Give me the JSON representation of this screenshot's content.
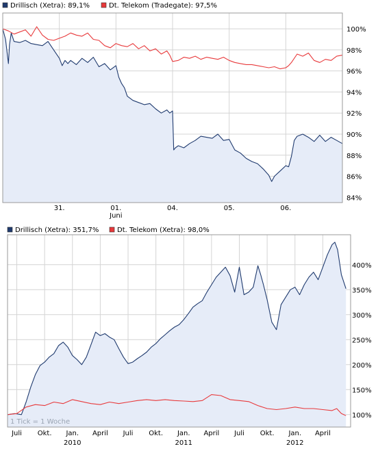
{
  "chart_data": [
    {
      "type": "line",
      "legend_position": "top-left",
      "grid": true,
      "y_axis_side": "right",
      "ylim": [
        83.5,
        101.5
      ],
      "yticks": [
        "100%",
        "98%",
        "96%",
        "94%",
        "92%",
        "90%",
        "88%",
        "86%",
        "84%"
      ],
      "ytick_values": [
        100,
        98,
        96,
        94,
        92,
        90,
        88,
        86,
        84
      ],
      "xticks": [
        "31.",
        "01.",
        "04.",
        "05.",
        "06."
      ],
      "xtick_sublabels": [
        "",
        "Juni",
        "",
        "",
        ""
      ],
      "xtick_positions": [
        1,
        2,
        3,
        4,
        5
      ],
      "xlim": [
        0,
        6
      ],
      "series": [
        {
          "name": "Drillisch (Xetra): 89,1%",
          "color": "#1f3a6e",
          "fill": "#e6ecf8",
          "x": [
            0,
            0.05,
            0.1,
            0.12,
            0.15,
            0.2,
            0.3,
            0.4,
            0.5,
            0.6,
            0.7,
            0.8,
            0.9,
            1.0,
            1.05,
            1.1,
            1.15,
            1.2,
            1.3,
            1.4,
            1.5,
            1.6,
            1.7,
            1.8,
            1.9,
            2.0,
            2.05,
            2.1,
            2.15,
            2.2,
            2.3,
            2.4,
            2.5,
            2.6,
            2.7,
            2.8,
            2.9,
            2.95,
            3.0,
            3.02,
            3.05,
            3.1,
            3.2,
            3.3,
            3.4,
            3.5,
            3.6,
            3.7,
            3.8,
            3.9,
            4.0,
            4.1,
            4.2,
            4.3,
            4.4,
            4.5,
            4.6,
            4.7,
            4.75,
            4.8,
            4.9,
            5.0,
            5.05,
            5.1,
            5.15,
            5.2,
            5.3,
            5.4,
            5.5,
            5.6,
            5.7,
            5.8,
            5.9,
            6.0
          ],
          "values": [
            100.0,
            99.0,
            96.7,
            98.5,
            99.6,
            98.8,
            98.7,
            98.9,
            98.6,
            98.5,
            98.4,
            98.8,
            98.0,
            97.2,
            96.5,
            97.0,
            96.7,
            97.0,
            96.6,
            97.2,
            96.8,
            97.3,
            96.4,
            96.7,
            96.1,
            96.5,
            95.4,
            94.8,
            94.4,
            93.6,
            93.2,
            93.0,
            92.8,
            92.9,
            92.4,
            92.0,
            92.3,
            92.0,
            92.2,
            88.5,
            88.7,
            88.9,
            88.7,
            89.1,
            89.4,
            89.8,
            89.7,
            89.6,
            90.0,
            89.4,
            89.5,
            88.5,
            88.2,
            87.7,
            87.4,
            87.2,
            86.7,
            86.1,
            85.5,
            86.0,
            86.5,
            87.0,
            86.9,
            87.9,
            89.4,
            89.8,
            90.0,
            89.7,
            89.3,
            89.9,
            89.3,
            89.7,
            89.4,
            89.1
          ]
        },
        {
          "name": "Dt. Telekom (Tradegate): 97,5%",
          "color": "#e8393b",
          "x": [
            0,
            0.1,
            0.2,
            0.3,
            0.4,
            0.5,
            0.6,
            0.7,
            0.8,
            0.9,
            1.0,
            1.1,
            1.2,
            1.3,
            1.4,
            1.5,
            1.6,
            1.7,
            1.8,
            1.9,
            2.0,
            2.1,
            2.2,
            2.3,
            2.4,
            2.5,
            2.6,
            2.7,
            2.8,
            2.9,
            2.95,
            3.0,
            3.1,
            3.2,
            3.3,
            3.4,
            3.5,
            3.6,
            3.7,
            3.8,
            3.9,
            4.0,
            4.1,
            4.2,
            4.3,
            4.4,
            4.5,
            4.6,
            4.7,
            4.8,
            4.9,
            5.0,
            5.05,
            5.1,
            5.2,
            5.3,
            5.4,
            5.5,
            5.6,
            5.7,
            5.8,
            5.9,
            6.0
          ],
          "values": [
            100.0,
            99.8,
            99.5,
            99.7,
            99.9,
            99.3,
            100.2,
            99.4,
            99.0,
            98.9,
            99.1,
            99.3,
            99.6,
            99.4,
            99.3,
            99.6,
            99.0,
            98.9,
            98.4,
            98.2,
            98.6,
            98.4,
            98.3,
            98.6,
            98.1,
            98.4,
            97.9,
            98.1,
            97.6,
            97.9,
            97.5,
            96.9,
            97.0,
            97.3,
            97.2,
            97.4,
            97.1,
            97.3,
            97.2,
            97.1,
            97.3,
            97.0,
            96.8,
            96.7,
            96.6,
            96.6,
            96.5,
            96.4,
            96.3,
            96.4,
            96.2,
            96.3,
            96.5,
            96.8,
            97.6,
            97.4,
            97.7,
            97.0,
            96.8,
            97.1,
            97.0,
            97.4,
            97.5
          ]
        }
      ]
    },
    {
      "type": "line",
      "legend_position": "top-left",
      "grid": true,
      "y_axis_side": "right",
      "ylim": [
        75,
        460
      ],
      "yticks": [
        "400%",
        "350%",
        "300%",
        "250%",
        "200%",
        "150%",
        "100%"
      ],
      "ytick_values": [
        400,
        350,
        300,
        250,
        200,
        150,
        100
      ],
      "xticks": [
        "Juli",
        "Okt.",
        "Jan.",
        "April",
        "Juli",
        "Okt.",
        "Jan.",
        "April",
        "Juli",
        "Okt.",
        "Jan.",
        "April"
      ],
      "xtick_years": [
        "",
        "",
        "2010",
        "",
        "",
        "",
        "2011",
        "",
        "",
        "",
        "2012",
        ""
      ],
      "xtick_positions": [
        1,
        4,
        7,
        10,
        13,
        16,
        19,
        22,
        25,
        28,
        31,
        34
      ],
      "xlim": [
        0,
        37
      ],
      "note": "1 Tick = 1 Woche",
      "series": [
        {
          "name": "Drillisch (Xetra): 351,7%",
          "color": "#1f3a6e",
          "fill": "#e6ecf8",
          "x": [
            0,
            0.8,
            1.5,
            2.0,
            2.5,
            3.0,
            3.5,
            4.0,
            4.5,
            5.0,
            5.5,
            6.0,
            6.5,
            7.0,
            7.5,
            8.0,
            8.5,
            9.0,
            9.5,
            10.0,
            10.5,
            11.0,
            11.5,
            12.0,
            12.5,
            13.0,
            13.5,
            14.0,
            14.5,
            15.0,
            15.5,
            16.0,
            16.5,
            17.0,
            17.5,
            18.0,
            18.5,
            19.0,
            19.5,
            20.0,
            20.5,
            21.0,
            21.5,
            22.0,
            22.5,
            23.0,
            23.5,
            24.0,
            24.5,
            25.0,
            25.5,
            26.0,
            26.5,
            27.0,
            27.3,
            27.6,
            28.0,
            28.5,
            29.0,
            29.5,
            30.0,
            30.5,
            31.0,
            31.5,
            32.0,
            32.5,
            33.0,
            33.5,
            34.0,
            34.5,
            35.0,
            35.3,
            35.6,
            36.0,
            36.5
          ],
          "values": [
            100,
            102,
            100,
            125,
            155,
            180,
            198,
            205,
            215,
            222,
            238,
            245,
            235,
            218,
            210,
            200,
            215,
            240,
            265,
            258,
            262,
            255,
            250,
            232,
            215,
            202,
            205,
            212,
            218,
            225,
            235,
            242,
            252,
            260,
            268,
            275,
            280,
            290,
            302,
            315,
            322,
            328,
            345,
            360,
            375,
            385,
            395,
            378,
            345,
            395,
            340,
            345,
            355,
            398,
            380,
            360,
            330,
            285,
            270,
            320,
            335,
            350,
            355,
            340,
            360,
            375,
            385,
            370,
            395,
            420,
            440,
            445,
            430,
            380,
            352
          ]
        },
        {
          "name": "Dt. Telekom (Xetra): 98,0%",
          "color": "#e8393b",
          "x": [
            0,
            1,
            2,
            3,
            4,
            5,
            6,
            7,
            8,
            9,
            10,
            11,
            12,
            13,
            14,
            15,
            16,
            17,
            18,
            19,
            20,
            21,
            22,
            23,
            24,
            25,
            26,
            27,
            28,
            29,
            30,
            31,
            32,
            33,
            34,
            35,
            35.5,
            36,
            36.5
          ],
          "values": [
            100,
            102,
            115,
            120,
            118,
            125,
            122,
            130,
            126,
            122,
            120,
            125,
            122,
            125,
            128,
            130,
            128,
            130,
            128,
            127,
            126,
            128,
            140,
            138,
            130,
            128,
            126,
            118,
            112,
            110,
            112,
            115,
            112,
            112,
            110,
            108,
            112,
            102,
            98
          ]
        }
      ]
    }
  ]
}
